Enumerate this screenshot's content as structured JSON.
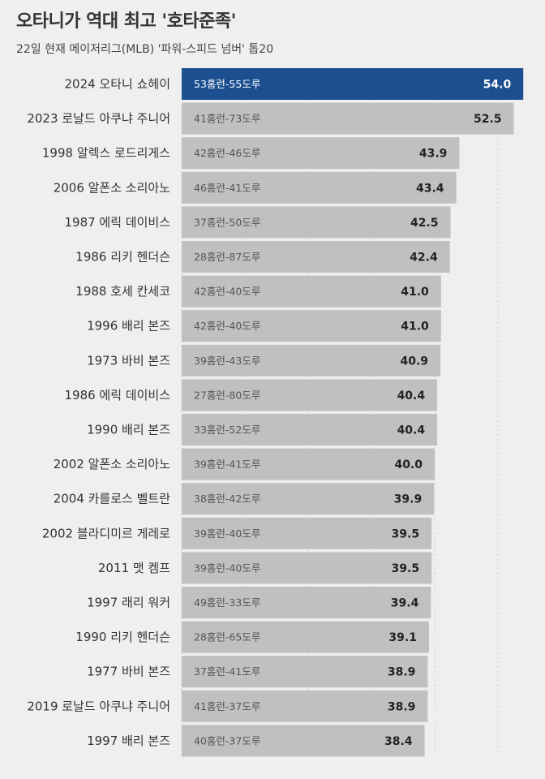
{
  "title": "오타니가 역대 최고 '호타준족'",
  "subtitle": "22일 현재 메이저리그(MLB) '파워-스피드 넘버' 톱20",
  "colors": {
    "highlight": "#1b4f8f",
    "bar": "#c0c0c0",
    "background": "#efefef",
    "highlight_text": "#ffffff",
    "text": "#222222"
  },
  "chart_data": {
    "type": "bar",
    "orientation": "horizontal",
    "grid": "vertical dotted",
    "xlim": [
      0,
      58
    ],
    "categories": [
      "2024 오타니 쇼헤이",
      "2023 로날드 아쿠냐 주니어",
      "1998 알렉스 로드리게스",
      "2006 알폰소 소리아노",
      "1987 에릭 데이비스",
      "1986 리키 헨더슨",
      "1988 호세 칸세코",
      "1996 배리 본즈",
      "1973 바비 본즈",
      "1986 에릭 데이비스",
      "1990 배리 본즈",
      "2002 알폰소 소리아노",
      "2004 카를로스 벨트란",
      "2002 블라디미르 게레로",
      "2011 맷 켐프",
      "1997 래리 워커",
      "1990 리키 헨더슨",
      "1977 바비 본즈",
      "2019 로날드 아쿠냐 주니어",
      "1997 배리 본즈"
    ],
    "details": [
      "53홈런-55도루",
      "41홈런-73도루",
      "42홈런-46도루",
      "46홈런-41도루",
      "37홈런-50도루",
      "28홈런-87도루",
      "42홈런-40도루",
      "42홈런-40도루",
      "39홈런-43도루",
      "27홈런-80도루",
      "33홈런-52도루",
      "39홈런-41도루",
      "38홈런-42도루",
      "39홈런-40도루",
      "39홈런-40도루",
      "49홈런-33도루",
      "28홈런-65도루",
      "37홈런-41도루",
      "41홈런-37도루",
      "40홈런-37도루"
    ],
    "values": [
      54.0,
      52.5,
      43.9,
      43.4,
      42.5,
      42.4,
      41.0,
      41.0,
      40.9,
      40.4,
      40.4,
      40.0,
      39.9,
      39.5,
      39.5,
      39.4,
      39.1,
      38.9,
      38.9,
      38.4
    ],
    "value_labels": [
      "54.0",
      "52.5",
      "43.9",
      "43.4",
      "42.5",
      "42.4",
      "41.0",
      "41.0",
      "40.9",
      "40.4",
      "40.4",
      "40.0",
      "39.9",
      "39.5",
      "39.5",
      "39.4",
      "39.1",
      "38.9",
      "38.9",
      "38.4"
    ],
    "highlight_index": 0
  }
}
